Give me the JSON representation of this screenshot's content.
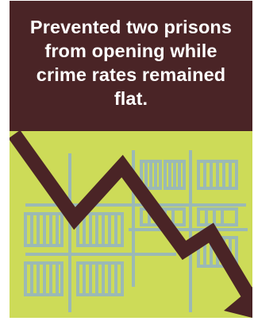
{
  "headline": "Prevented two prisons from opening while crime rates remained flat.",
  "icons": {
    "prison_grid": "prison-bars-grid-icon",
    "trend_arrow": "downward-trend-arrow-icon"
  },
  "colors": {
    "header_background": "#4a2426",
    "illustration_background": "#cddb58",
    "prison_lines": "#9bb9b5",
    "arrow": "#4a2426",
    "headline_text": "#ffffff"
  }
}
